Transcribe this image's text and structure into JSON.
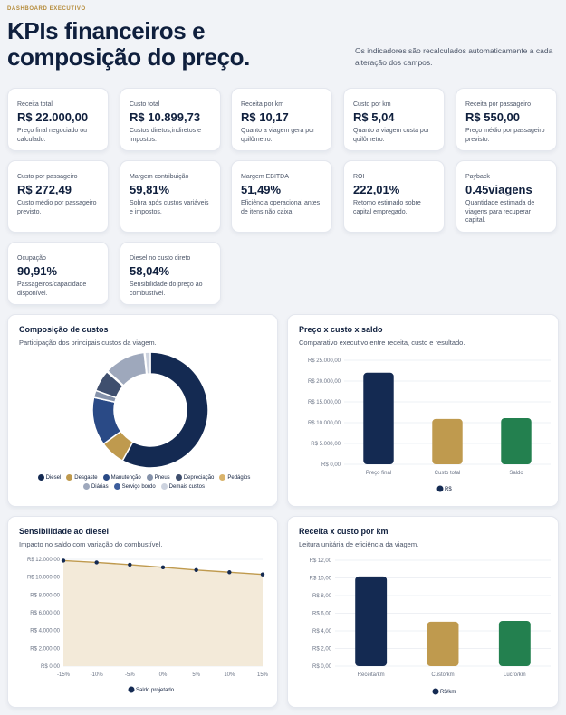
{
  "header": {
    "eyebrow": "DASHBOARD EXECUTIVO",
    "title": "KPIs financeiros e composição do preço.",
    "subtitle": "Os indicadores são recalculados automaticamente a cada alteração dos campos."
  },
  "kpis": [
    {
      "label": "Receita total",
      "value": "R$ 22.000,00",
      "desc": "Preço final negociado ou calculado."
    },
    {
      "label": "Custo total",
      "value": "R$ 10.899,73",
      "desc": "Custos diretos,indiretos e impostos."
    },
    {
      "label": "Receita por km",
      "value": "R$ 10,17",
      "desc": "Quanto a viagem gera por quilômetro."
    },
    {
      "label": "Custo por km",
      "value": "R$ 5,04",
      "desc": "Quanto a viagem custa por quilômetro."
    },
    {
      "label": "Receita por passageiro",
      "value": "R$ 550,00",
      "desc": "Preço médio por passageiro previsto."
    },
    {
      "label": "Custo por passageiro",
      "value": "R$ 272,49",
      "desc": "Custo médio por passageiro previsto."
    },
    {
      "label": "Margem contribuição",
      "value": "59,81%",
      "desc": "Sobra após custos variáveis e impostos."
    },
    {
      "label": "Margem EBITDA",
      "value": "51,49%",
      "desc": "Eficiência operacional antes de itens não caixa."
    },
    {
      "label": "ROI",
      "value": "222,01%",
      "desc": "Retorno estimado sobre capital empregado."
    },
    {
      "label": "Payback",
      "value": "0.45viagens",
      "desc": "Quantidade estimada de viagens para recuperar capital."
    },
    {
      "label": "Ocupação",
      "value": "90,91%",
      "desc": "Passageiros/capacidade disponível."
    },
    {
      "label": "Diesel no custo direto",
      "value": "58,04%",
      "desc": "Sensibilidade do preço ao combustível."
    }
  ],
  "panels": {
    "composicao": {
      "title": "Composição de custos",
      "subtitle": "Participação dos principais custos da viagem."
    },
    "preco": {
      "title": "Preço x custo x saldo",
      "subtitle": "Comparativo executivo entre receita, custo e resultado."
    },
    "sensibilidade": {
      "title": "Sensibilidade ao diesel",
      "subtitle": "Impacto no saldo com variação do combustível."
    },
    "receita_km": {
      "title": "Receita x custo por km",
      "subtitle": "Leitura unitária de eficiência da viagem."
    }
  },
  "colors": {
    "navy": "#142a52",
    "gold": "#bf9a4e",
    "green": "#23804f",
    "slate": "#8592aa",
    "gold_fill": "#f3ead9"
  },
  "chart_data": [
    {
      "type": "pie",
      "title": "Composição de custos",
      "categories": [
        "Diesel",
        "Desgaste",
        "Manutenção",
        "Pneus",
        "Depreciação",
        "Pedágios",
        "Diárias",
        "Serviço bordo",
        "Demais custos"
      ],
      "values": [
        58.0,
        7.0,
        13.5,
        2.0,
        6.0,
        0.3,
        11.5,
        0.2,
        1.5
      ],
      "colors": [
        "#142a52",
        "#bf9a4e",
        "#2a4a86",
        "#8592aa",
        "#3f4f6e",
        "#d9b36b",
        "#9ea8bc",
        "#3c5d9c",
        "#cdd3df"
      ]
    },
    {
      "type": "bar",
      "title": "Preço x custo x saldo",
      "categories": [
        "Preço final",
        "Custo total",
        "Saldo"
      ],
      "series": [
        {
          "name": "R$",
          "values": [
            22000,
            10899.73,
            11100.27
          ]
        }
      ],
      "bar_colors": [
        "#142a52",
        "#bf9a4e",
        "#23804f"
      ],
      "ylim": [
        0,
        25000
      ],
      "yticks": [
        "R$ 0,00",
        "R$ 5.000,00",
        "R$ 10.000,00",
        "R$ 15.000,00",
        "R$ 20.000,00",
        "R$ 25.000,00"
      ]
    },
    {
      "type": "line",
      "title": "Sensibilidade ao diesel",
      "x": [
        "-15%",
        "-10%",
        "-5%",
        "0%",
        "5%",
        "10%",
        "15%"
      ],
      "series": [
        {
          "name": "Saldo projetado",
          "values": [
            11850,
            11650,
            11400,
            11100,
            10800,
            10550,
            10300
          ]
        }
      ],
      "ylim": [
        0,
        12000
      ],
      "yticks": [
        "R$ 0,00",
        "R$ 2.000,00",
        "R$ 4.000,00",
        "R$ 6.000,00",
        "R$ 8.000,00",
        "R$ 10.000,00",
        "R$ 12.000,00"
      ]
    },
    {
      "type": "bar",
      "title": "Receita x custo por km",
      "categories": [
        "Receita/km",
        "Custo/km",
        "Lucro/km"
      ],
      "series": [
        {
          "name": "R$/km",
          "values": [
            10.17,
            5.04,
            5.13
          ]
        }
      ],
      "bar_colors": [
        "#142a52",
        "#bf9a4e",
        "#23804f"
      ],
      "ylim": [
        0,
        12
      ],
      "yticks": [
        "R$ 0,00",
        "R$ 2,00",
        "R$ 4,00",
        "R$ 6,00",
        "R$ 8,00",
        "R$ 10,00",
        "R$ 12,00"
      ]
    }
  ]
}
